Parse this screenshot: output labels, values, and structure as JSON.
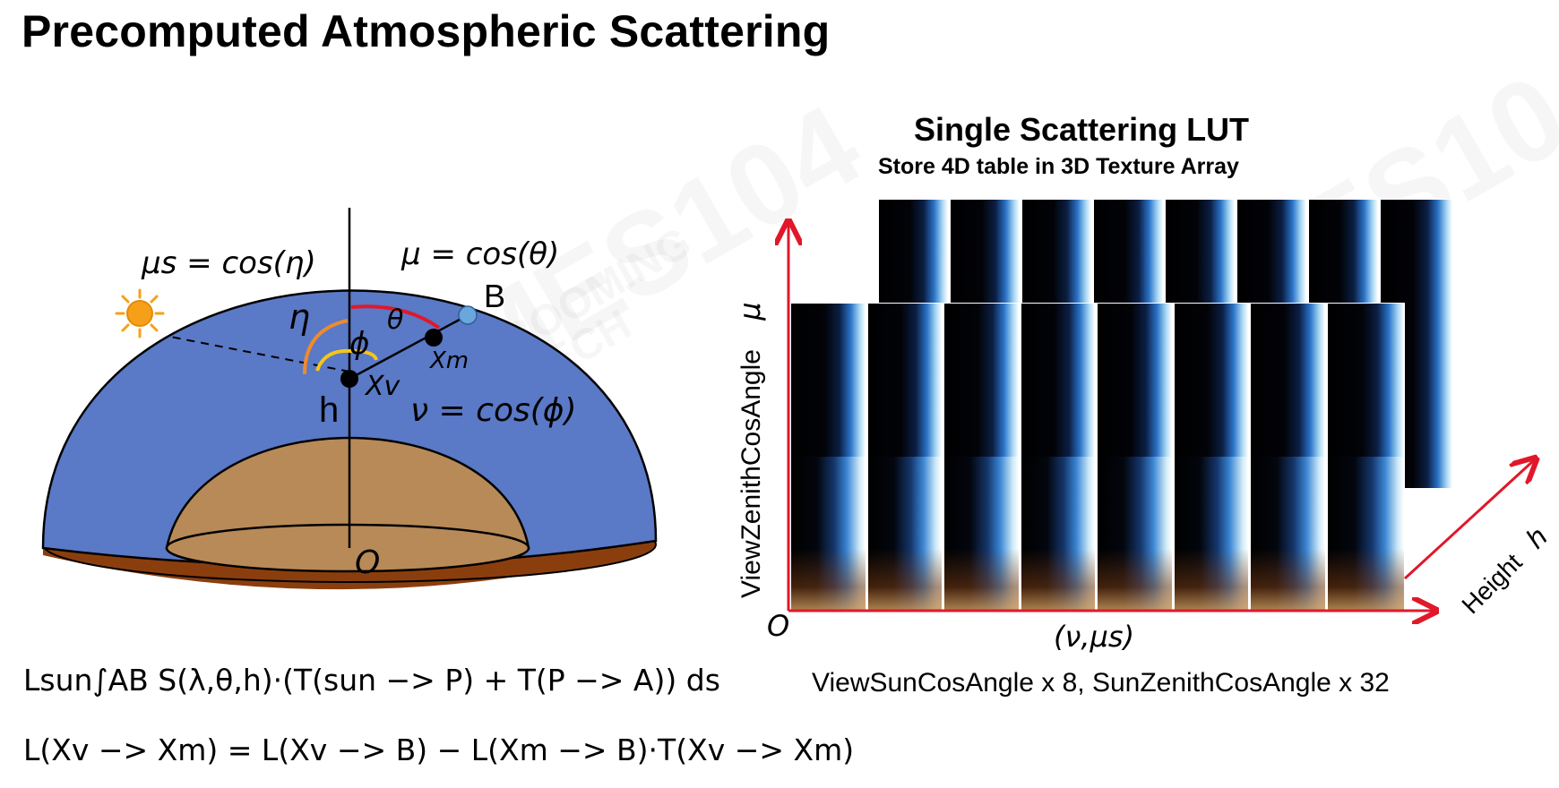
{
  "title": "Precomputed Atmospheric Scattering",
  "watermark": {
    "main": "GAMES104",
    "brand_line1": "BOOMING",
    "brand_line2": "TECH"
  },
  "diagram": {
    "mu_s_eq": "μs = cos(η)",
    "mu_eq": "μ = cos(θ)",
    "nu_eq": "ν = cos(ϕ)",
    "point_b": "B",
    "eta": "η",
    "theta": "θ",
    "phi": "ϕ",
    "xm": "Xm",
    "xv": "Xv",
    "h": "h",
    "origin": "O",
    "colors": {
      "sky": "#5a79c6",
      "ground_top": "#b88a58",
      "ground_base": "#8b3e0d",
      "sun": "#f6a01a",
      "theta_arc": "#e0182a",
      "eta_arc": "#ef8a2e",
      "phi_arc": "#f3c61a",
      "point_b": "#6aa7dd"
    }
  },
  "equations": {
    "line1": "Lsun∫AB S(λ,θ,h)·(T(sun −> P) + T(P −> A)) ds",
    "line2": "L(Xv −> Xm) = L(Xv −> B) − L(Xm −> B)·T(Xv −> Xm)"
  },
  "lut": {
    "title": "Single Scattering LUT",
    "subtitle": "Store 4D table in 3D Texture Array",
    "y_axis_label": "ViewZenithCosAngle",
    "y_axis_symbol": "μ",
    "origin": "O",
    "x_axis_label": "(ν,μs)",
    "depth_axis_label": "Height",
    "depth_axis_symbol": "h",
    "caption": "ViewSunCosAngle x 8, SunZenithCosAngle x 32",
    "axis_color": "#e0182a"
  }
}
